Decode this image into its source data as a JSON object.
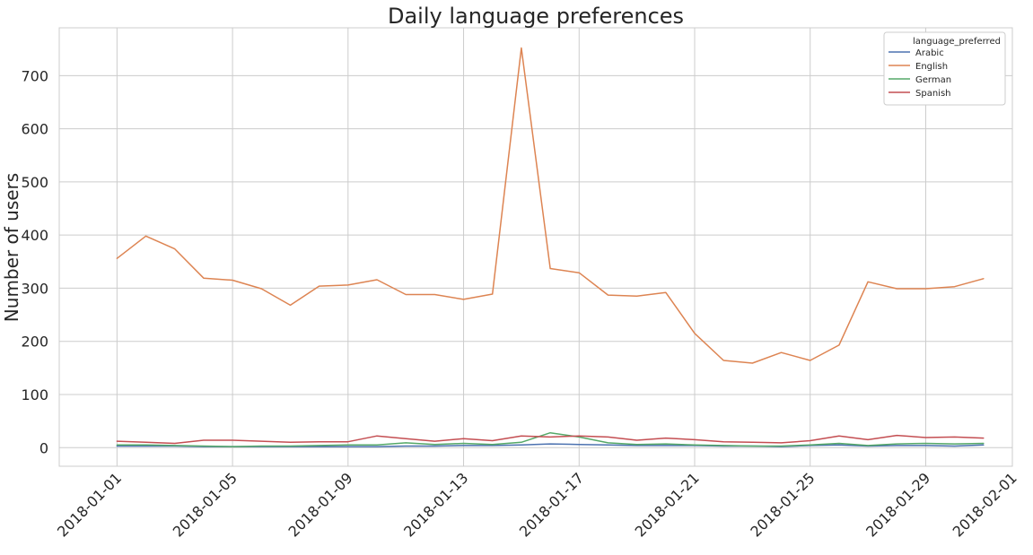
{
  "chart_data": {
    "type": "line",
    "title": "Daily language preferences",
    "xlabel": "",
    "ylabel": "Number of users",
    "xlim": [
      "2017-12-30",
      "2018-02-01"
    ],
    "ylim": [
      -35,
      790
    ],
    "yticks": [
      0,
      100,
      200,
      300,
      400,
      500,
      600,
      700
    ],
    "xticks": [
      "2018-01-01",
      "2018-01-05",
      "2018-01-09",
      "2018-01-13",
      "2018-01-17",
      "2018-01-21",
      "2018-01-25",
      "2018-01-29",
      "2018-02-01"
    ],
    "grid": true,
    "legend": {
      "title": "language_preferred",
      "position": "top-right"
    },
    "x": [
      "2018-01-01",
      "2018-01-02",
      "2018-01-03",
      "2018-01-04",
      "2018-01-05",
      "2018-01-06",
      "2018-01-07",
      "2018-01-08",
      "2018-01-09",
      "2018-01-10",
      "2018-01-11",
      "2018-01-12",
      "2018-01-13",
      "2018-01-14",
      "2018-01-15",
      "2018-01-16",
      "2018-01-17",
      "2018-01-18",
      "2018-01-19",
      "2018-01-20",
      "2018-01-21",
      "2018-01-22",
      "2018-01-23",
      "2018-01-24",
      "2018-01-25",
      "2018-01-26",
      "2018-01-27",
      "2018-01-28",
      "2018-01-29",
      "2018-01-30",
      "2018-01-31"
    ],
    "series": [
      {
        "name": "Arabic",
        "color": "#4c72b0",
        "values": [
          3,
          3,
          3,
          2,
          2,
          2,
          2,
          2,
          2,
          2,
          3,
          3,
          4,
          4,
          5,
          7,
          6,
          5,
          4,
          4,
          4,
          3,
          3,
          2,
          4,
          5,
          3,
          4,
          4,
          3,
          5
        ]
      },
      {
        "name": "English",
        "color": "#dd8452",
        "values": [
          356,
          398,
          374,
          319,
          315,
          299,
          268,
          304,
          306,
          316,
          288,
          288,
          279,
          289,
          752,
          337,
          329,
          287,
          285,
          292,
          215,
          164,
          159,
          179,
          164,
          193,
          312,
          299,
          299,
          303,
          318
        ]
      },
      {
        "name": "German",
        "color": "#55a868",
        "values": [
          5,
          5,
          4,
          3,
          2,
          3,
          3,
          4,
          5,
          5,
          9,
          6,
          8,
          6,
          10,
          28,
          20,
          9,
          6,
          7,
          5,
          4,
          3,
          3,
          5,
          8,
          4,
          7,
          8,
          7,
          8
        ]
      },
      {
        "name": "Spanish",
        "color": "#c44e52",
        "values": [
          12,
          10,
          8,
          14,
          14,
          12,
          10,
          11,
          11,
          22,
          17,
          12,
          17,
          13,
          22,
          20,
          22,
          20,
          14,
          18,
          15,
          11,
          10,
          9,
          13,
          22,
          15,
          23,
          19,
          20,
          18
        ]
      }
    ]
  }
}
